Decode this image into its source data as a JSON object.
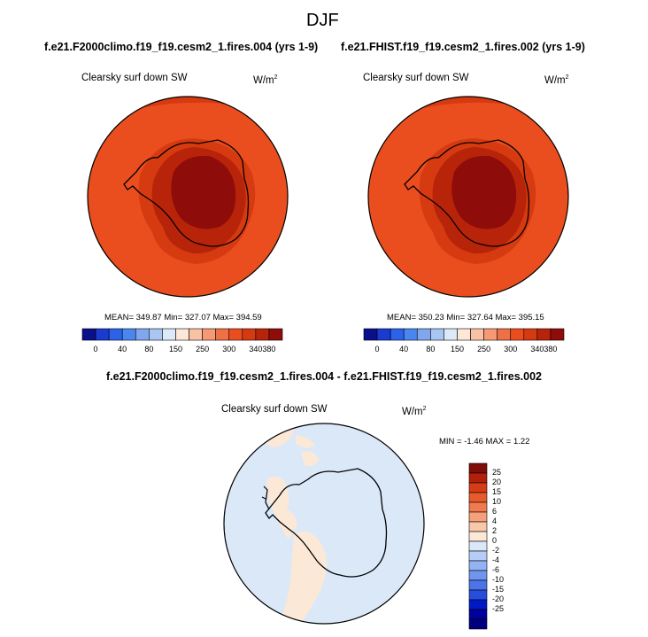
{
  "page": {
    "title": "DJF"
  },
  "colors": {
    "cbar_colors": [
      "#0a0f8c",
      "#1a3ad0",
      "#2a62ea",
      "#4a86ef",
      "#7fa6ee",
      "#a9c6f2",
      "#dbe9f9",
      "#fde7d8",
      "#f9c2a4",
      "#f59a74",
      "#f07046",
      "#ea4e1f",
      "#d63a10",
      "#b8240a",
      "#8e0c0a"
    ],
    "diff_colors": [
      "#00007f",
      "#00009e",
      "#0019c6",
      "#264ddb",
      "#4a74e8",
      "#6f95ef",
      "#92b3f4",
      "#b6cdf7",
      "#dae8f8",
      "#fce8d6",
      "#f9c7aa",
      "#f5a07a",
      "#f07a4e",
      "#e85a2c",
      "#d63c15",
      "#b2200a",
      "#7f0c08"
    ]
  },
  "panels": [
    {
      "case": "f.e21.F2000climo.f19_f19.cesm2_1.fires.004 (yrs 1-9)",
      "variable": "Clearsky surf down SW",
      "units": "W/m",
      "units_exp": "2",
      "stats": "MEAN= 349.87  Min= 327.07  Max= 394.59"
    },
    {
      "case": "f.e21.FHIST.f19_f19.cesm2_1.fires.002 (yrs 1-9)",
      "variable": "Clearsky surf down SW",
      "units": "W/m",
      "units_exp": "2",
      "stats": "MEAN= 350.23  Min= 327.64  Max= 395.15"
    }
  ],
  "diff_panel": {
    "case": "f.e21.F2000climo.f19_f19.cesm2_1.fires.004 - f.e21.FHIST.f19_f19.cesm2_1.fires.002",
    "variable": "Clearsky surf down SW",
    "units": "W/m",
    "units_exp": "2",
    "stats": "MIN =  -1.46 MAX =   1.22"
  },
  "chart_data": [
    {
      "type": "heatmap",
      "title": "f.e21.F2000climo.f19_f19.cesm2_1.fires.004 (yrs 1-9)",
      "projection": "south polar stereographic",
      "variable": "Clearsky surf down SW",
      "units": "W/m2",
      "mean": 349.87,
      "min": 327.07,
      "max": 394.59,
      "levels": [
        0,
        40,
        80,
        150,
        250,
        300,
        340,
        380
      ],
      "colorbar_ticks": [
        "0",
        "40",
        "80",
        "150",
        "250",
        "300",
        "340",
        "380"
      ],
      "colorbar_orientation": "horizontal"
    },
    {
      "type": "heatmap",
      "title": "f.e21.FHIST.f19_f19.cesm2_1.fires.002 (yrs 1-9)",
      "projection": "south polar stereographic",
      "variable": "Clearsky surf down SW",
      "units": "W/m2",
      "mean": 350.23,
      "min": 327.64,
      "max": 395.15,
      "levels": [
        0,
        40,
        80,
        150,
        250,
        300,
        340,
        380
      ],
      "colorbar_ticks": [
        "0",
        "40",
        "80",
        "150",
        "250",
        "300",
        "340",
        "380"
      ],
      "colorbar_orientation": "horizontal"
    },
    {
      "type": "heatmap",
      "title": "f.e21.F2000climo.f19_f19.cesm2_1.fires.004 - f.e21.FHIST.f19_f19.cesm2_1.fires.002",
      "projection": "south polar stereographic",
      "variable": "Clearsky surf down SW",
      "units": "W/m2",
      "min": -1.46,
      "max": 1.22,
      "levels": [
        -25,
        -20,
        -15,
        -10,
        -6,
        -4,
        -2,
        0,
        2,
        4,
        6,
        10,
        15,
        20,
        25
      ],
      "colorbar_ticks": [
        "25",
        "20",
        "15",
        "10",
        "6",
        "4",
        "2",
        "0",
        "-2",
        "-4",
        "-6",
        "-10",
        "-15",
        "-20",
        "-25"
      ],
      "colorbar_orientation": "vertical"
    }
  ]
}
